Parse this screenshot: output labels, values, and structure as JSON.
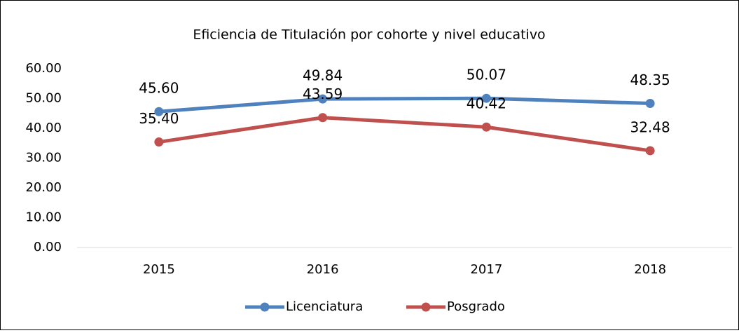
{
  "chart_data": {
    "type": "line",
    "title": "Eficiencia de Titulación por cohorte y nivel educativo",
    "categories": [
      "2015",
      "2016",
      "2017",
      "2018"
    ],
    "series": [
      {
        "name": "Licenciatura",
        "color": "#4f81bd",
        "values": [
          45.6,
          49.84,
          50.07,
          48.35
        ],
        "value_labels": [
          "45.60",
          "49.84",
          "50.07",
          "48.35"
        ]
      },
      {
        "name": "Posgrado",
        "color": "#c0504d",
        "values": [
          35.4,
          43.59,
          40.42,
          32.48
        ],
        "value_labels": [
          "35.40",
          "43.59",
          "40.42",
          "32.48"
        ]
      }
    ],
    "ylim": [
      0,
      60
    ],
    "yticks": [
      {
        "value": 0,
        "label": "0.00"
      },
      {
        "value": 10,
        "label": "10.00"
      },
      {
        "value": 20,
        "label": "20.00"
      },
      {
        "value": 30,
        "label": "30.00"
      },
      {
        "value": 40,
        "label": "40.00"
      },
      {
        "value": 50,
        "label": "50.00"
      },
      {
        "value": 60,
        "label": "60.00"
      }
    ],
    "grid": false,
    "legend": "bottom"
  }
}
